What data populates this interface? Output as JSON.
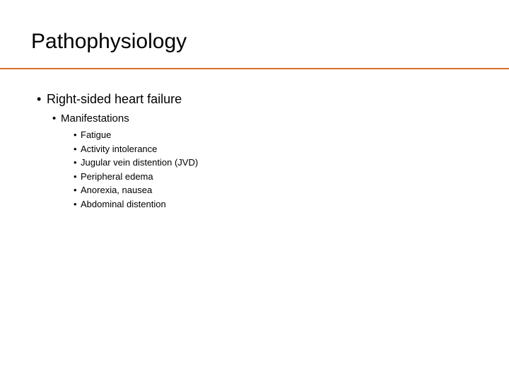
{
  "colors": {
    "rule": "#d86c28",
    "text": "#000000",
    "background": "#ffffff"
  },
  "title": "Pathophysiology",
  "body": {
    "lvl1": {
      "bullet": "•",
      "text": "Right-sided heart failure"
    },
    "lvl2": {
      "bullet": "•",
      "text": "Manifestations"
    },
    "lvl3": [
      {
        "bullet": "•",
        "text": "Fatigue"
      },
      {
        "bullet": "•",
        "text": "Activity intolerance"
      },
      {
        "bullet": "•",
        "text": "Jugular vein distention (JVD)"
      },
      {
        "bullet": "•",
        "text": "Peripheral edema"
      },
      {
        "bullet": "•",
        "text": "Anorexia, nausea"
      },
      {
        "bullet": "•",
        "text": "Abdominal distention"
      }
    ]
  }
}
